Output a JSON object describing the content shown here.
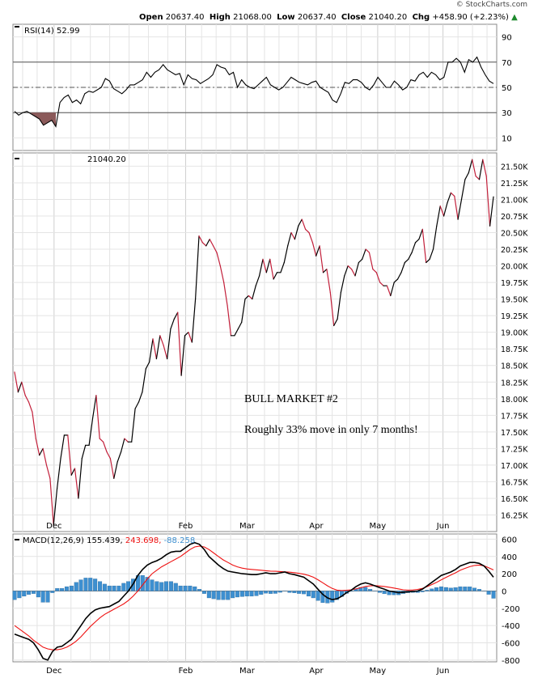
{
  "header": {
    "watermark": "© StockCharts.com",
    "open_label": "Open",
    "open_value": "20637.40",
    "high_label": "High",
    "high_value": "21068.00",
    "low_label": "Low",
    "low_value": "20637.40",
    "close_label": "Close",
    "close_value": "21040.20",
    "chg_label": "Chg",
    "chg_value": "+458.90 (+2.23%)",
    "chg_arrow": "▲"
  },
  "annotations": {
    "title": "BULL MARKET #2",
    "note": "Roughly 33% move in only 7 months!"
  },
  "colors": {
    "up": "#000000",
    "down": "#c21f3a",
    "rsi_fill": "#8b5a5a",
    "macd_signal": "#ee1111",
    "histogram": "#3d8fd0",
    "grid": "#cfcfcf"
  },
  "chart_data": [
    {
      "panel": "rsi",
      "type": "line",
      "label": "RSI(14) 52.99",
      "ylim": [
        0,
        100
      ],
      "y_ticks": [
        10,
        30,
        50,
        70,
        90
      ],
      "y_tick_labels": [
        "10",
        "30",
        "50",
        "70",
        "90"
      ],
      "reference_lines": [
        30,
        50,
        70
      ],
      "values": [
        31,
        28,
        30,
        31,
        29,
        27,
        25,
        20,
        22,
        24,
        19,
        38,
        42,
        44,
        38,
        40,
        37,
        45,
        47,
        46,
        48,
        50,
        57,
        55,
        49,
        47,
        45,
        48,
        52,
        52,
        54,
        56,
        62,
        58,
        62,
        64,
        68,
        64,
        62,
        60,
        61,
        52,
        60,
        57,
        56,
        53,
        55,
        57,
        60,
        68,
        66,
        65,
        60,
        62,
        50,
        56,
        52,
        50,
        49,
        52,
        55,
        58,
        52,
        50,
        48,
        50,
        54,
        58,
        56,
        54,
        53,
        52,
        54,
        55,
        50,
        48,
        46,
        40,
        38,
        45,
        54,
        53,
        56,
        56,
        54,
        50,
        48,
        52,
        58,
        54,
        50,
        50,
        55,
        52,
        48,
        50,
        56,
        55,
        60,
        62,
        58,
        62,
        60,
        56,
        58,
        70,
        70,
        73,
        70,
        62,
        72,
        70,
        74,
        66,
        60,
        55,
        53
      ],
      "down_threshold": 30
    },
    {
      "panel": "price",
      "type": "line",
      "label": "21040.20",
      "ylim": [
        16000,
        21700
      ],
      "y_ticks": [
        16250,
        16500,
        16750,
        17000,
        17250,
        17500,
        17750,
        18000,
        18250,
        18500,
        18750,
        19000,
        19250,
        19500,
        19750,
        20000,
        20250,
        20500,
        20750,
        21000,
        21250,
        21500
      ],
      "y_tick_labels": [
        "16.25K",
        "16.50K",
        "16.75K",
        "17.00K",
        "17.25K",
        "17.50K",
        "17.75K",
        "18.00K",
        "18.25K",
        "18.50K",
        "18.75K",
        "19.00K",
        "19.25K",
        "19.50K",
        "19.75K",
        "20.00K",
        "20.25K",
        "20.50K",
        "20.75K",
        "21.00K",
        "21.25K",
        "21.50K"
      ],
      "values": [
        18400,
        18100,
        18250,
        18050,
        17950,
        17800,
        17400,
        17150,
        17250,
        17000,
        16800,
        16100,
        16650,
        17100,
        17450,
        17450,
        16850,
        16950,
        16500,
        17100,
        17300,
        17300,
        17700,
        18050,
        17400,
        17350,
        17200,
        17100,
        16800,
        17050,
        17200,
        17400,
        17350,
        17350,
        17850,
        17950,
        18100,
        18450,
        18550,
        18900,
        18600,
        18950,
        18800,
        18600,
        19050,
        19200,
        19300,
        18350,
        18950,
        19000,
        18850,
        19500,
        20450,
        20350,
        20300,
        20400,
        20300,
        20200,
        20000,
        19750,
        19400,
        18950,
        18950,
        19050,
        19150,
        19500,
        19550,
        19500,
        19700,
        19850,
        20100,
        19900,
        20100,
        19800,
        19900,
        19900,
        20050,
        20300,
        20500,
        20400,
        20600,
        20700,
        20550,
        20500,
        20350,
        20150,
        20300,
        19900,
        19950,
        19600,
        19100,
        19200,
        19600,
        19850,
        20000,
        19950,
        19850,
        20050,
        20100,
        20250,
        20200,
        19950,
        19900,
        19750,
        19700,
        19700,
        19550,
        19750,
        19800,
        19900,
        20050,
        20100,
        20200,
        20350,
        20400,
        20550,
        20050,
        20100,
        20250,
        20600,
        20900,
        20750,
        20950,
        21100,
        21050,
        20700,
        21000,
        21300,
        21400,
        21600,
        21350,
        21300,
        21600,
        21350,
        20600,
        21040
      ],
      "x_tick_labels": [
        "Dec",
        "Feb",
        "Mar",
        "Apr",
        "May",
        "Jun"
      ]
    },
    {
      "panel": "macd",
      "type": "line",
      "label": "MACD(12,26,9) 155.439, 243.698, -88.258",
      "label_main": "MACD(12,26,9)",
      "label_macd": "155.439",
      "label_signal": "243.698",
      "label_hist": "-88.258",
      "ylim": [
        -820,
        660
      ],
      "y_ticks": [
        600,
        400,
        200,
        0,
        -200,
        -400,
        -600,
        -800
      ],
      "y_tick_labels": [
        "600",
        "400",
        "200",
        "0",
        "-200",
        "-400",
        "-600",
        "-800"
      ],
      "macd": [
        -500,
        -520,
        -540,
        -560,
        -600,
        -680,
        -780,
        -800,
        -700,
        -650,
        -640,
        -600,
        -560,
        -480,
        -400,
        -320,
        -260,
        -220,
        -200,
        -190,
        -180,
        -150,
        -120,
        -60,
        0,
        80,
        180,
        250,
        300,
        330,
        350,
        380,
        420,
        450,
        460,
        460,
        500,
        540,
        560,
        540,
        480,
        400,
        350,
        300,
        260,
        230,
        220,
        210,
        200,
        195,
        190,
        190,
        200,
        210,
        200,
        200,
        210,
        220,
        200,
        190,
        175,
        160,
        120,
        80,
        20,
        -40,
        -80,
        -100,
        -90,
        -60,
        -20,
        10,
        50,
        80,
        95,
        80,
        60,
        40,
        20,
        0,
        -10,
        -20,
        -15,
        -10,
        -5,
        0,
        20,
        60,
        100,
        140,
        180,
        200,
        220,
        250,
        290,
        310,
        330,
        330,
        320,
        290,
        230,
        160
      ],
      "signal": [
        -400,
        -440,
        -480,
        -520,
        -570,
        -610,
        -650,
        -670,
        -680,
        -680,
        -670,
        -650,
        -620,
        -580,
        -530,
        -470,
        -410,
        -360,
        -310,
        -270,
        -240,
        -210,
        -180,
        -150,
        -110,
        -60,
        0,
        70,
        140,
        200,
        240,
        280,
        310,
        340,
        370,
        400,
        440,
        480,
        510,
        520,
        510,
        480,
        440,
        400,
        360,
        330,
        300,
        280,
        265,
        255,
        250,
        245,
        240,
        235,
        230,
        228,
        225,
        222,
        218,
        212,
        204,
        194,
        180,
        160,
        130,
        95,
        60,
        30,
        10,
        5,
        8,
        14,
        24,
        38,
        52,
        60,
        62,
        58,
        52,
        44,
        34,
        24,
        14,
        10,
        12,
        18,
        30,
        50,
        75,
        100,
        130,
        158,
        185,
        210,
        240,
        262,
        282,
        296,
        300,
        292,
        268,
        244
      ],
      "histogram_color": "#3d8fd0",
      "x_tick_labels": [
        "Dec",
        "Feb",
        "Mar",
        "Apr",
        "May",
        "Jun"
      ]
    }
  ]
}
